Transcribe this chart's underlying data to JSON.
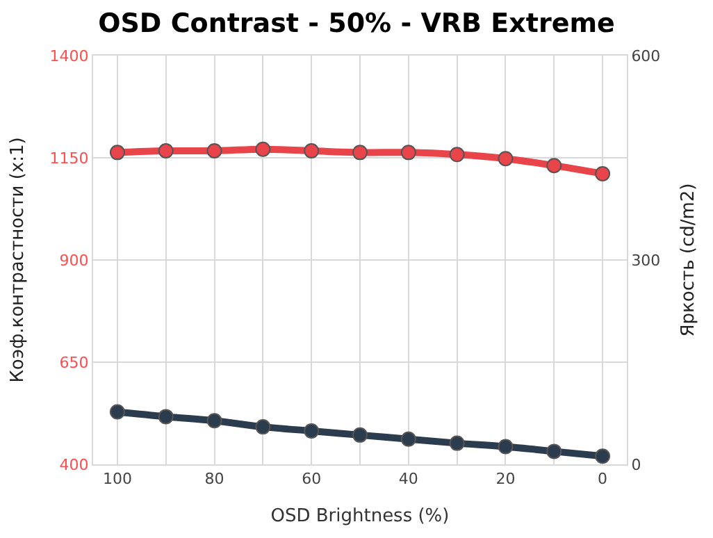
{
  "chart_data": {
    "type": "line",
    "title": "OSD Contrast - 50% - VRB Extreme",
    "xlabel": "OSD Brightness (%)",
    "ylabel": "Коэф.контрастности (x:1)",
    "y2label": "Яркость (cd/m2)",
    "x": [
      100,
      90,
      80,
      70,
      60,
      50,
      40,
      30,
      20,
      10,
      0
    ],
    "series": [
      {
        "color": "#e8444a",
        "values": [
          1163,
          1167,
          1167,
          1171,
          1167,
          1163,
          1163,
          1158,
          1148,
          1131,
          1111
        ]
      },
      {
        "color": "#2b3c4e",
        "axis": "y2",
        "values": [
          77,
          70,
          64,
          55,
          49,
          43,
          37,
          31,
          26,
          19,
          12
        ]
      }
    ],
    "xlim": [
      105,
      -5
    ],
    "xticks": [
      100,
      {
        "value": 90,
        "label": null
      },
      80,
      {
        "value": 70,
        "label": null
      },
      60,
      {
        "value": 50,
        "label": null
      },
      40,
      {
        "value": 30,
        "label": null
      },
      20,
      {
        "value": 10,
        "label": null
      },
      0
    ],
    "ylim": [
      400,
      1400
    ],
    "yticks": [
      400,
      650,
      900,
      1150,
      1400
    ],
    "y2lim": [
      0,
      600
    ],
    "y2ticks": [
      0,
      300,
      600
    ],
    "grid": true,
    "marker": "circle",
    "line_style": "solid"
  }
}
